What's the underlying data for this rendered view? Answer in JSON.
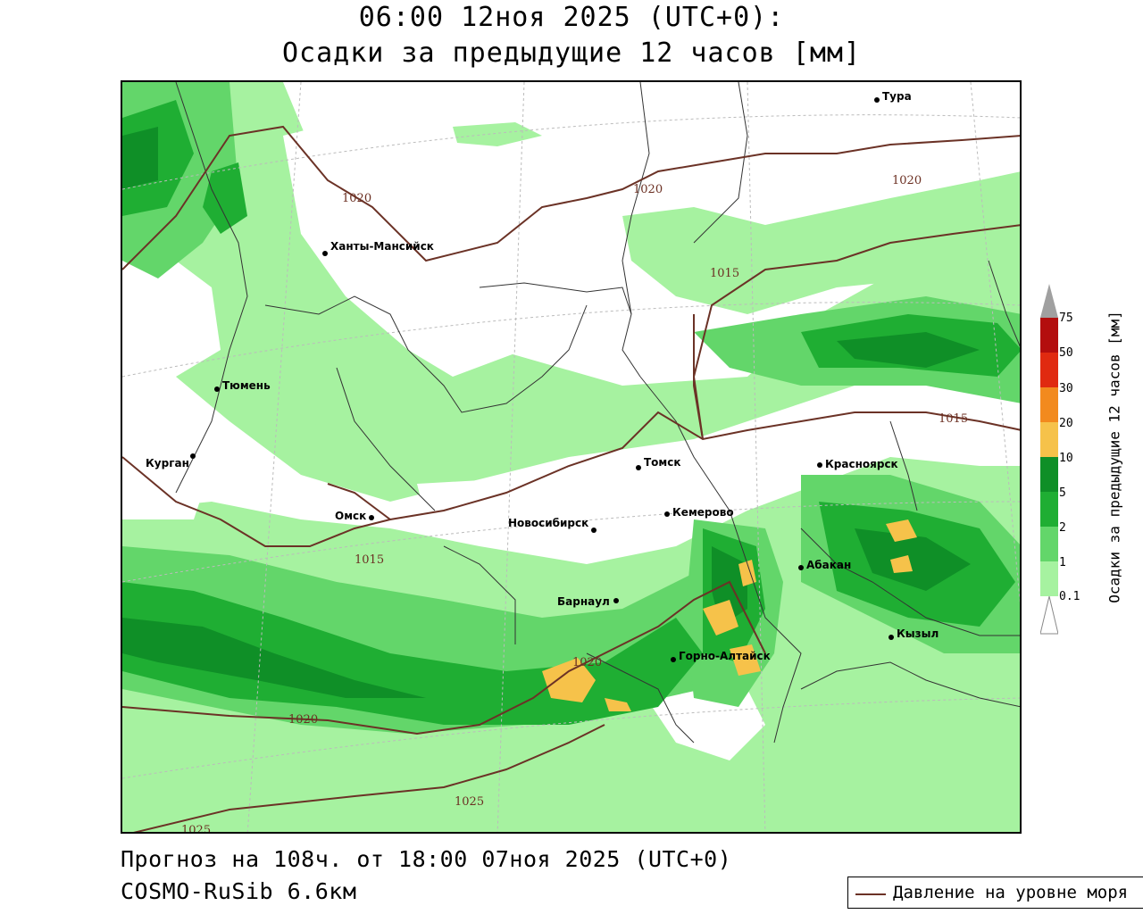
{
  "header": {
    "line1": "06:00 12ноя 2025 (UTC+0):",
    "line2": "Осадки за предыдущие 12 часов [мм]"
  },
  "footer": {
    "forecast": "Прогноз на 108ч. от 18:00 07ноя 2025 (UTC+0)",
    "model": "COSMO-RuSib 6.6км"
  },
  "legend": {
    "pressure_label": "Давление на уровне моря"
  },
  "colorbar": {
    "title": "Осадки за предыдущие 12 часов [мм]",
    "ticks": [
      "0.1",
      "1",
      "2",
      "5",
      "10",
      "20",
      "30",
      "50",
      "75"
    ],
    "colors": [
      "#a6f2a0",
      "#63d66a",
      "#1fae33",
      "#0f8f27",
      "#f6c24a",
      "#f28a1e",
      "#e02a10",
      "#b30e0e",
      "#a0a0a0"
    ]
  },
  "colors": {
    "light_green": "#a6f2a0",
    "mid_green": "#63d66a",
    "green": "#1fae33",
    "dark_green": "#0f8f27",
    "yellow_orange": "#f6c24a",
    "isobar": "#6b3226"
  },
  "cities": [
    {
      "name": "Тура"
    },
    {
      "name": "Ханты-Мансийск"
    },
    {
      "name": "Тюмень"
    },
    {
      "name": "Курган"
    },
    {
      "name": "Омск"
    },
    {
      "name": "Томск"
    },
    {
      "name": "Красноярск"
    },
    {
      "name": "Новосибирск"
    },
    {
      "name": "Кемерово"
    },
    {
      "name": "Абакан"
    },
    {
      "name": "Барнаул"
    },
    {
      "name": "Кызыл"
    },
    {
      "name": "Горно-Алтайск"
    }
  ],
  "isobars": [
    "1020",
    "1020",
    "1020",
    "1015",
    "1015",
    "1015",
    "1020",
    "1020",
    "1025",
    "1025"
  ]
}
